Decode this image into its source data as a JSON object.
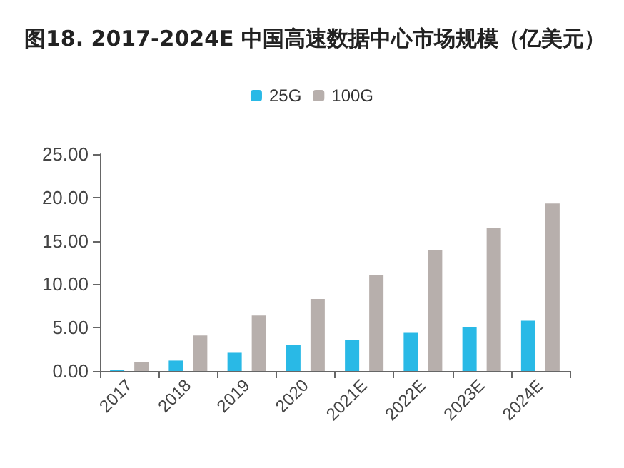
{
  "chart_data": {
    "type": "bar",
    "title": "图18. 2017-2024E 中国高速数据中心市场规模（亿美元）",
    "categories": [
      "2017",
      "2018",
      "2019",
      "2020",
      "2021E",
      "2022E",
      "2023E",
      "2024E"
    ],
    "series": [
      {
        "name": "25G",
        "color": "#29b9e6",
        "values": [
          0.1,
          1.2,
          2.1,
          3.0,
          3.6,
          4.4,
          5.1,
          5.8
        ]
      },
      {
        "name": "100G",
        "color": "#b7afac",
        "values": [
          1.0,
          4.1,
          6.4,
          8.3,
          11.1,
          13.9,
          16.5,
          19.3
        ]
      }
    ],
    "ylim": [
      0,
      25
    ],
    "yticks": [
      {
        "value": 0,
        "label": "0.00"
      },
      {
        "value": 5,
        "label": "5.00"
      },
      {
        "value": 10,
        "label": "10.00"
      },
      {
        "value": 15,
        "label": "15.00"
      },
      {
        "value": 20,
        "label": "20.00"
      },
      {
        "value": 25,
        "label": "25.00"
      }
    ],
    "legend": "top",
    "grid": false
  }
}
